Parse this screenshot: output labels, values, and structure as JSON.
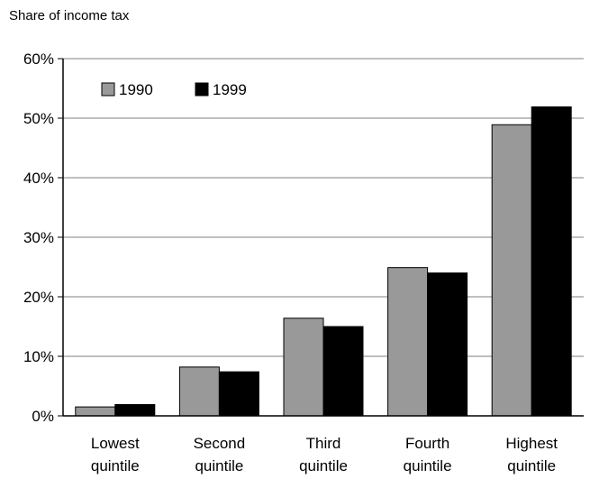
{
  "chart_data": {
    "type": "bar",
    "title": "",
    "ylabel": "Share of income tax",
    "xlabel": "",
    "categories": [
      [
        "Lowest",
        "quintile"
      ],
      [
        "Second",
        "quintile"
      ],
      [
        "Third",
        "quintile"
      ],
      [
        "Fourth",
        "quintile"
      ],
      [
        "Highest",
        "quintile"
      ]
    ],
    "series": [
      {
        "name": "1990",
        "color": "#999999",
        "values": [
          1.5,
          8.2,
          16.4,
          24.9,
          48.9
        ]
      },
      {
        "name": "1999",
        "color": "#000000",
        "values": [
          1.9,
          7.4,
          15.0,
          24.0,
          51.9
        ]
      }
    ],
    "ylim": [
      0,
      60
    ],
    "yticks": [
      "0%",
      "10%",
      "20%",
      "30%",
      "40%",
      "50%",
      "60%"
    ],
    "grid": true,
    "legend": "top-left"
  }
}
